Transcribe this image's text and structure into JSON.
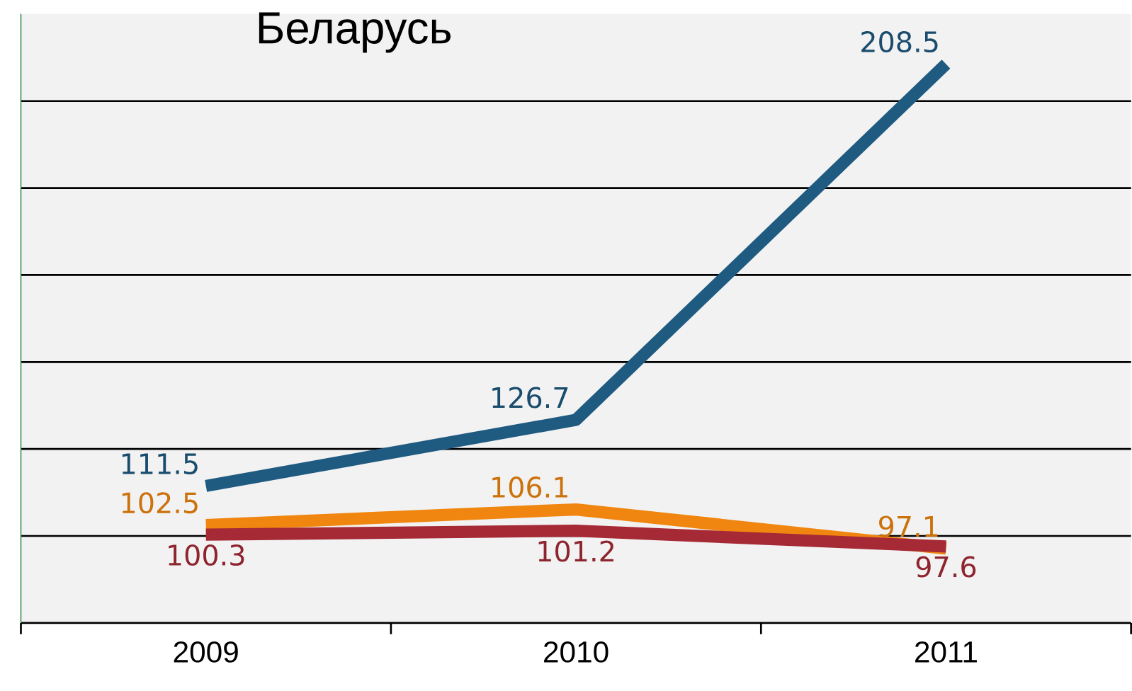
{
  "chart_data": {
    "type": "line",
    "title": "Беларусь",
    "categories": [
      "2009",
      "2010",
      "2011"
    ],
    "series": [
      {
        "color": "#1f5a80",
        "values": [
          111.5,
          126.7,
          208.5
        ]
      },
      {
        "color": "#f0860f",
        "values": [
          102.5,
          106.1,
          97.1
        ]
      },
      {
        "color": "#a62a36",
        "values": [
          100.3,
          101.2,
          97.6
        ]
      }
    ],
    "ylim": [
      80,
      220
    ],
    "yticks": [
      {
        "value": 100,
        "label": null
      },
      {
        "value": 120,
        "label": null
      },
      {
        "value": 140,
        "label": null
      },
      {
        "value": 160,
        "label": null
      },
      {
        "value": 180,
        "label": null
      },
      {
        "value": 200,
        "label": null
      }
    ],
    "grid": "y",
    "data_labels": true,
    "marker": "none",
    "line_style": "solid"
  }
}
